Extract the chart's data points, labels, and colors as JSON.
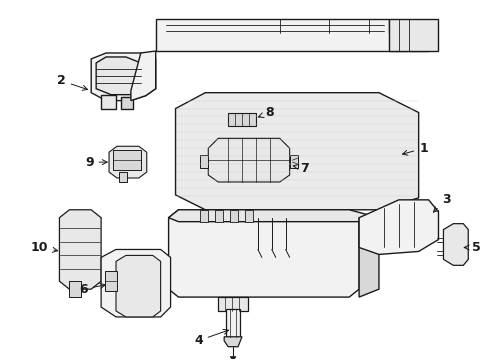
{
  "background_color": "#ffffff",
  "line_color": "#1a1a1a",
  "fill_light": "#f2f2f2",
  "fill_medium": "#e8e8e8",
  "fill_dark": "#d8d8d8",
  "lw_main": 1.0,
  "lw_detail": 0.6,
  "figsize": [
    4.89,
    3.6
  ],
  "dpi": 100
}
